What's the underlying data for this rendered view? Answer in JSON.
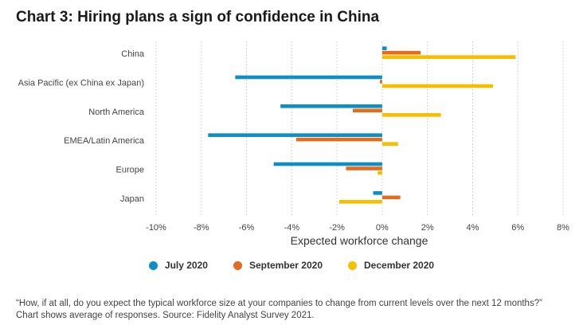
{
  "chart_data": {
    "type": "bar",
    "orientation": "horizontal",
    "title": "Chart 3: Hiring plans a sign of confidence in China",
    "xlabel": "Expected workforce change",
    "ylabel": "",
    "xlim": [
      -10,
      8
    ],
    "tick_values": [
      -10,
      -8,
      -6,
      -4,
      -2,
      0,
      2,
      4,
      6,
      8
    ],
    "tick_labels": [
      "-10%",
      "-8%",
      "-6%",
      "-4%",
      "-2%",
      "0%",
      "2%",
      "4%",
      "6%",
      "8%"
    ],
    "grid": true,
    "legend_position": "bottom",
    "categories": [
      "China",
      "Asia Pacific (ex China ex Japan)",
      "North America",
      "EMEA/Latin America",
      "Europe",
      "Japan"
    ],
    "series": [
      {
        "name": "July 2020",
        "color": "#0f8ec3",
        "values": [
          0.2,
          -6.5,
          -4.5,
          -7.7,
          -4.8,
          -0.4
        ]
      },
      {
        "name": "September 2020",
        "color": "#e36c1e",
        "values": [
          1.7,
          -0.1,
          -1.3,
          -3.8,
          -1.6,
          0.8
        ]
      },
      {
        "name": "December 2020",
        "color": "#f5bf00",
        "values": [
          5.9,
          4.9,
          2.6,
          0.7,
          -0.2,
          -1.9
        ]
      }
    ],
    "footnote": "“How, if at all, do you expect the typical workforce size at your companies to change from current levels over the next 12 months?” Chart shows average of responses. Source: Fidelity Analyst Survey 2021."
  }
}
